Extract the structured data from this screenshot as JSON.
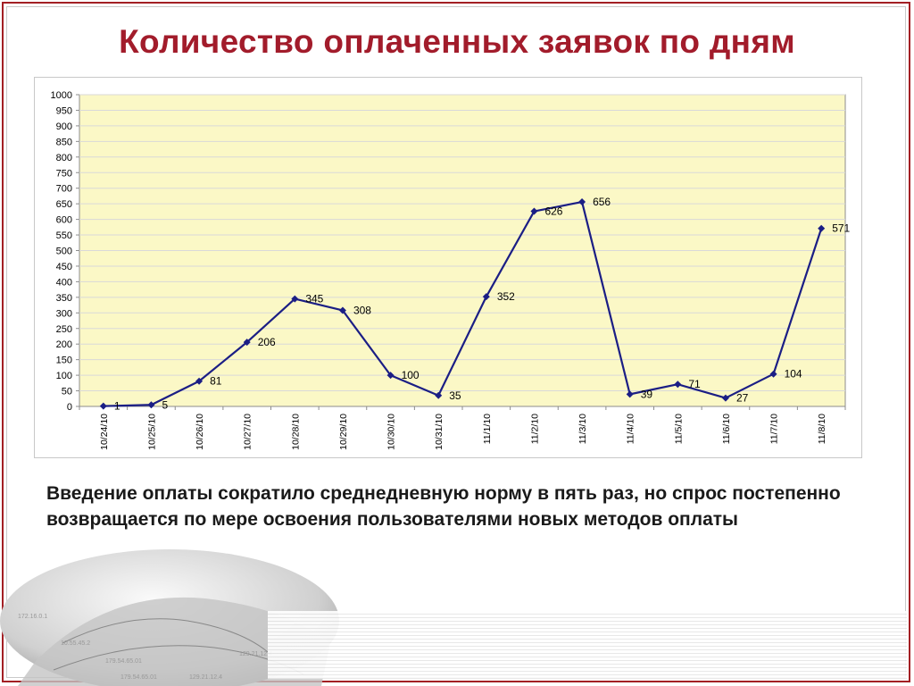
{
  "page": {
    "title": "Количество оплаченных заявок по дням",
    "caption": "Введение оплаты сократило среднедневную норму в пять раз, но спрос постепенно возвращается по мере освоения пользователями новых методов оплаты"
  },
  "colors": {
    "title": "#a21c2b",
    "frame": "#a31f24",
    "plot_background": "#fbf8c6",
    "series": "#1b1e85"
  },
  "decoration": {
    "globe_labels": [
      "172.16.0.1",
      "10.55.45.2",
      "179.54.65.01",
      "129.21.12.4",
      "179.54.65.01",
      "129.21.12.4"
    ]
  },
  "chart_data": {
    "type": "line",
    "title": "",
    "xlabel": "",
    "ylabel": "",
    "ylim": [
      0,
      1000
    ],
    "ytick_step": 50,
    "grid": true,
    "legend": "none",
    "categories": [
      "10/24/10",
      "10/25/10",
      "10/26/10",
      "10/27/10",
      "10/28/10",
      "10/29/10",
      "10/30/10",
      "10/31/10",
      "11/1/10",
      "11/2/10",
      "11/3/10",
      "11/4/10",
      "11/5/10",
      "11/6/10",
      "11/7/10",
      "11/8/10"
    ],
    "series": [
      {
        "values": [
          1,
          5,
          81,
          206,
          345,
          308,
          100,
          35,
          352,
          626,
          656,
          39,
          71,
          27,
          104,
          571
        ]
      }
    ]
  }
}
